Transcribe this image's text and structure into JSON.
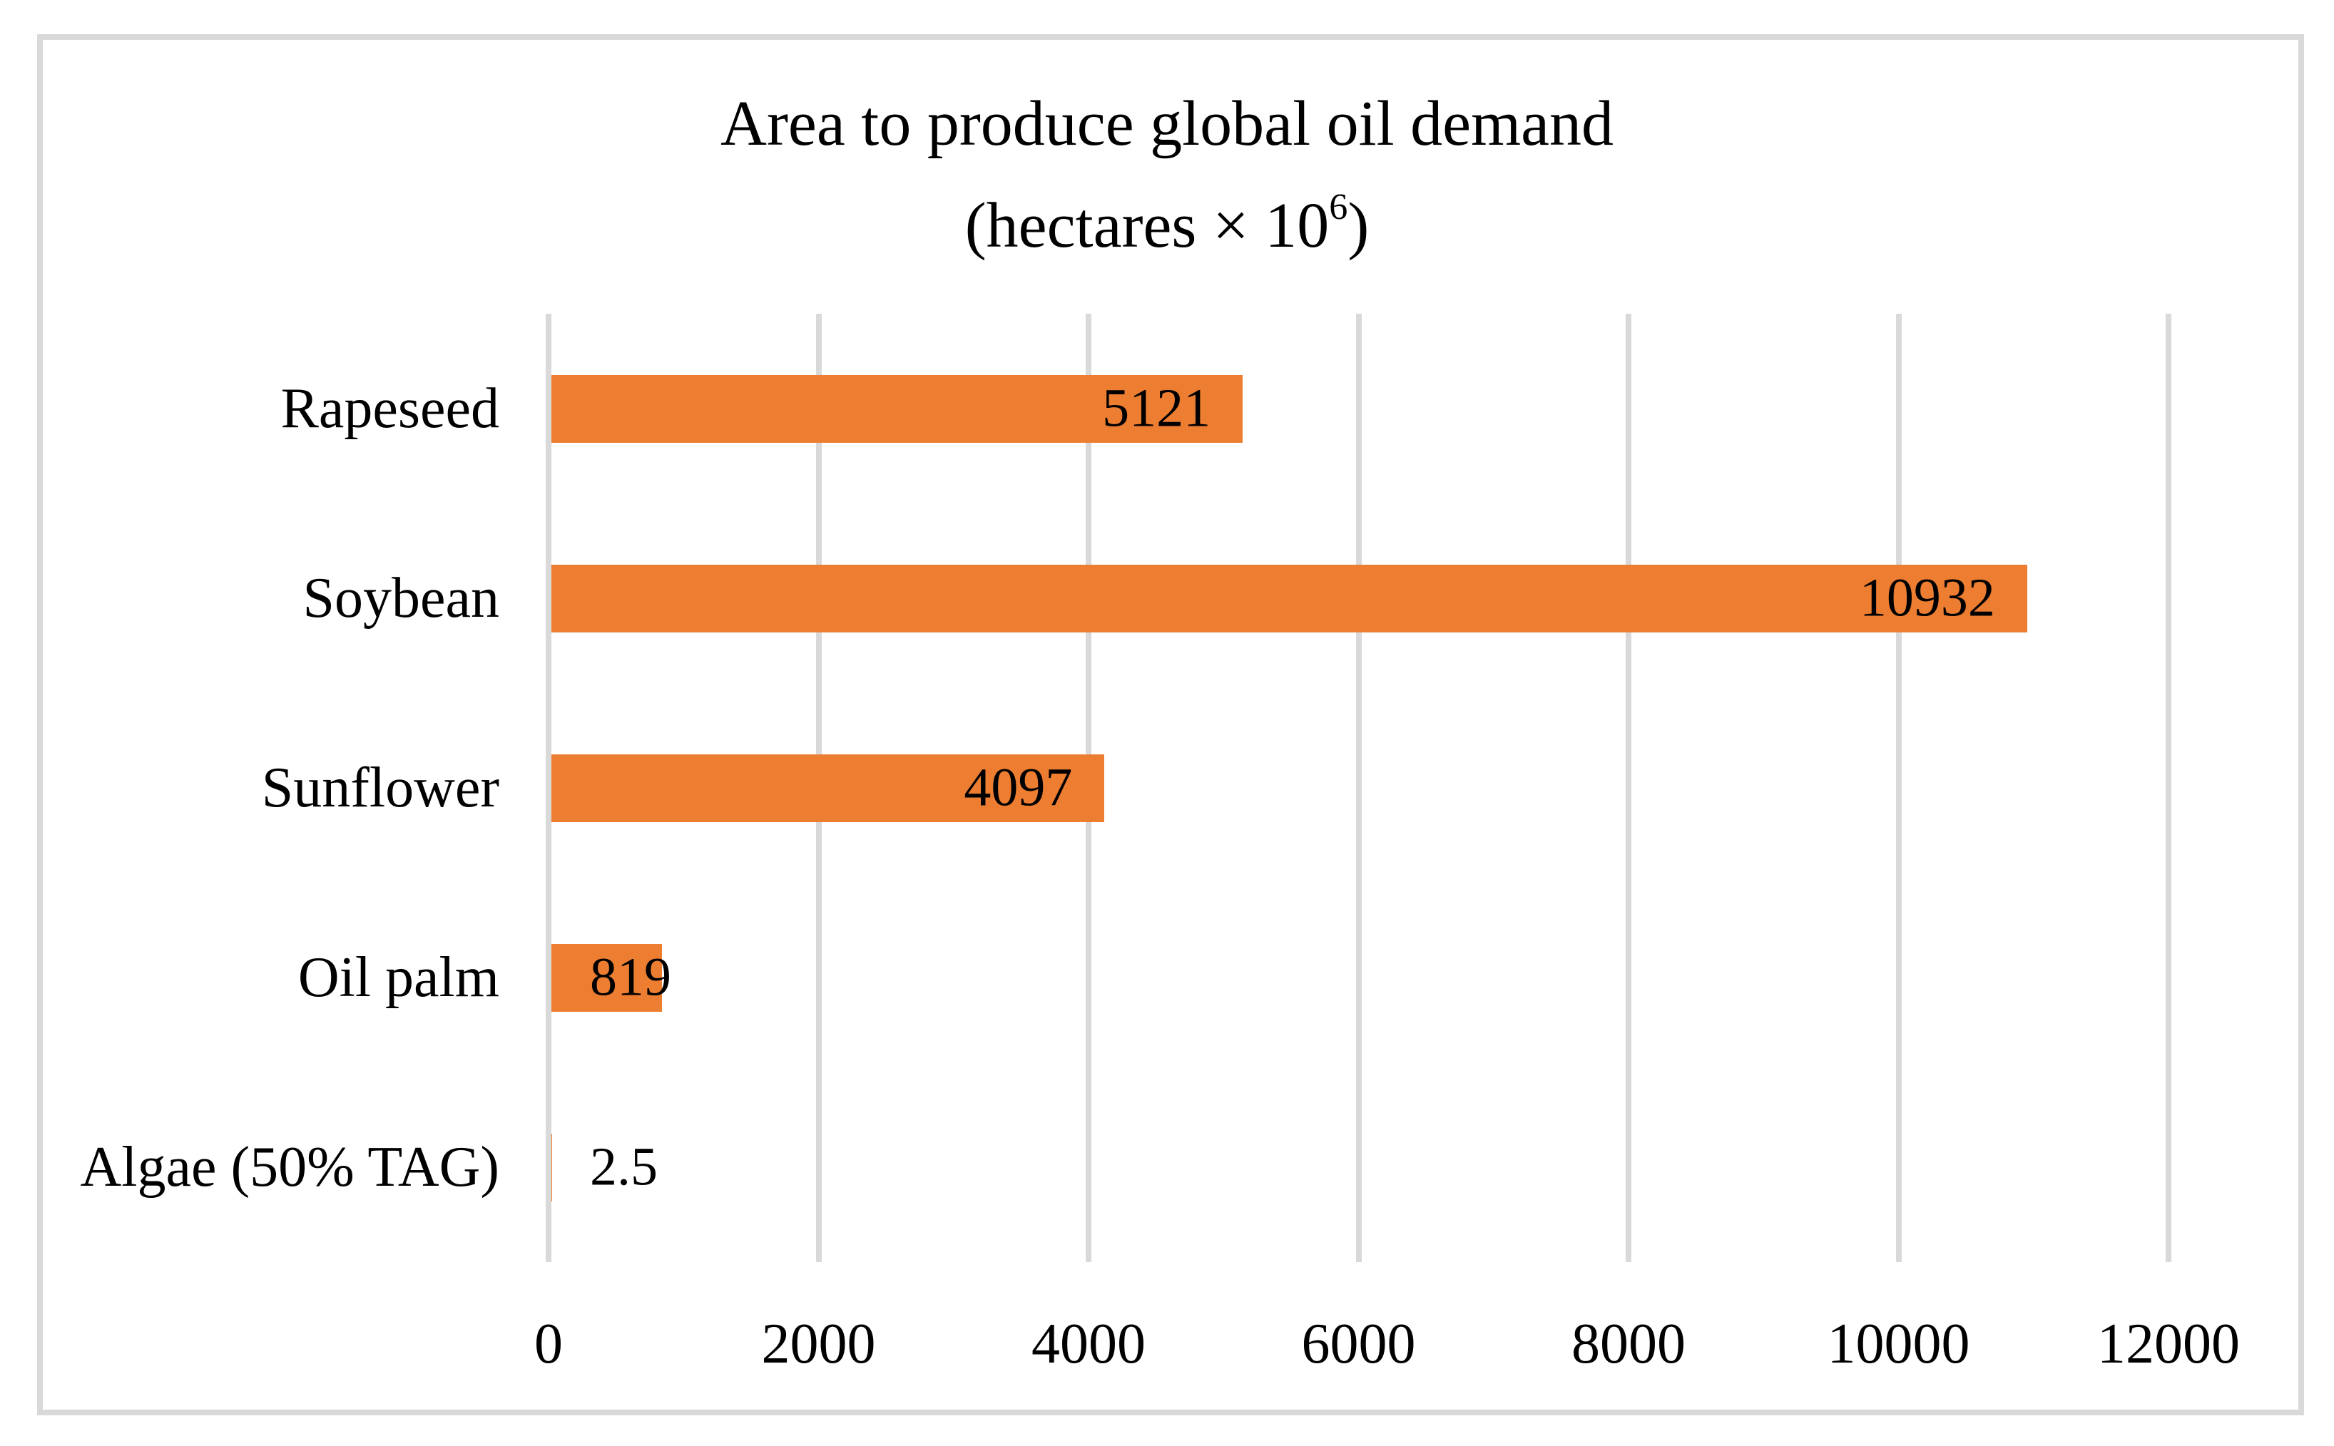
{
  "chart_data": {
    "type": "bar",
    "orientation": "horizontal",
    "title": "Area to produce global oil demand",
    "subtitle": {
      "prefix": "(hectares × 10",
      "sup": "6",
      "suffix": ")"
    },
    "categories": [
      "Rapeseed",
      "Soybean",
      "Sunflower",
      "Oil palm",
      "Algae (50% TAG)"
    ],
    "values": [
      5121,
      10932,
      4097,
      819,
      2.5
    ],
    "data_labels": [
      "5121",
      "10932",
      "4097",
      "819",
      "2.5"
    ],
    "x_tick_values": [
      0,
      2000,
      4000,
      6000,
      8000,
      10000,
      12000
    ],
    "x_tick_labels": [
      "0",
      "2000",
      "4000",
      "6000",
      "8000",
      "10000",
      "12000"
    ],
    "xlim": [
      0,
      12000
    ],
    "xlabel": "",
    "ylabel": "",
    "grid": "vertical",
    "legend_position": "none",
    "data_label_position": "inside-end",
    "colors": {
      "bar": "#ED7D31",
      "gridline": "#D9D9D9",
      "chart_border": "#D9D9D9",
      "text": "#000000",
      "background": "#FFFFFF"
    }
  }
}
